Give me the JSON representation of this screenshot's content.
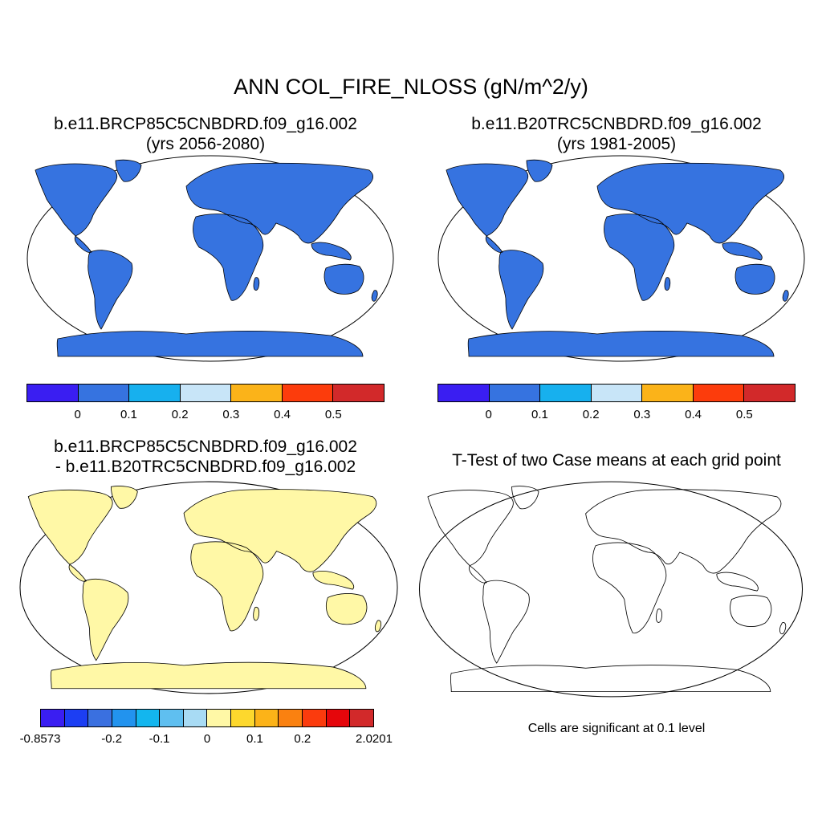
{
  "title": "ANN COL_FIRE_NLOSS (gN/m^2/y)",
  "panels": {
    "future": {
      "case": "b.e11.BRCP85C5CNBDRD.f09_g16.002",
      "years": "(yrs 2056-2080)"
    },
    "historical": {
      "case": "b.e11.B20TRC5CNBDRD.f09_g16.002",
      "years": "(yrs 1981-2005)"
    },
    "difference": {
      "line1": "b.e11.BRCP85C5CNBDRD.f09_g16.002",
      "line2": "- b.e11.B20TRC5CNBDRD.f09_g16.002"
    },
    "ttest": {
      "title": "T-Test of two Case means at each grid point",
      "note": "Cells are significant at 0.1 level"
    }
  },
  "colorbars": {
    "absolute": {
      "colors": [
        "#3a1ef2",
        "#3673e0",
        "#17b0ee",
        "#c8e5f8",
        "#fbb319",
        "#fc3c0c",
        "#d2292a"
      ],
      "labels": [
        "0",
        "0.1",
        "0.2",
        "0.3",
        "0.4",
        "0.5"
      ]
    },
    "difference": {
      "colors": [
        "#3a1ef2",
        "#1c3ef3",
        "#3a70e0",
        "#2293ee",
        "#13b6ee",
        "#5fbff0",
        "#a8dbf4",
        "#fff8a6",
        "#fdd82d",
        "#fcb318",
        "#fa8110",
        "#fb3b0d",
        "#e5060b",
        "#d2292a"
      ],
      "labels": [
        "-0.8573",
        "-0.2",
        "-0.1",
        "0",
        "0.1",
        "0.2",
        "2.0201"
      ]
    }
  },
  "map_colors": {
    "land_low": "#3673e0",
    "land_light": "#17b0ee",
    "fire_orange": "#fbb319",
    "fire_red": "#d2292a",
    "diff_neutral": "#fff8a6",
    "diff_pos": "#fb3b0d",
    "diff_neg": "#1c3ef3",
    "significant": "#ff0000",
    "coast": "#000000"
  }
}
